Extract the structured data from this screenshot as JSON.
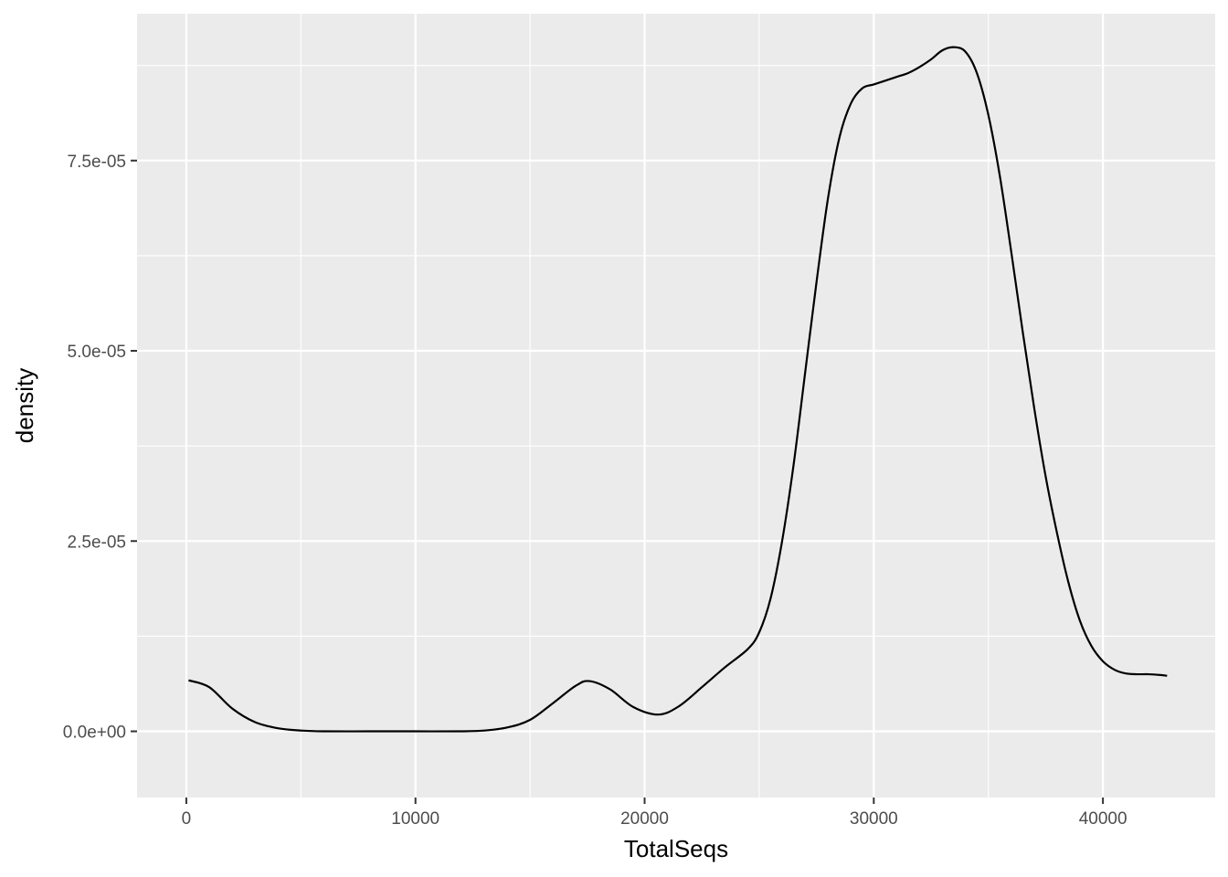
{
  "chart_data": {
    "type": "line",
    "title": "",
    "xlabel": "TotalSeqs",
    "ylabel": "density",
    "xlim": [
      -2150,
      44900
    ],
    "ylim": [
      -8.7e-06,
      9.43e-05
    ],
    "x_ticks": [
      {
        "value": 0,
        "label": "0"
      },
      {
        "value": 10000,
        "label": "10000"
      },
      {
        "value": 20000,
        "label": "20000"
      },
      {
        "value": 30000,
        "label": "30000"
      },
      {
        "value": 40000,
        "label": "40000"
      }
    ],
    "y_ticks": [
      {
        "value": 0,
        "label": "0.0e+00"
      },
      {
        "value": 2.5e-05,
        "label": "2.5e-05"
      },
      {
        "value": 5e-05,
        "label": "5.0e-05"
      },
      {
        "value": 7.5e-05,
        "label": "7.5e-05"
      }
    ],
    "x_minor": [
      5000,
      15000,
      25000,
      35000
    ],
    "y_minor": [
      1.25e-05,
      3.75e-05,
      6.25e-05,
      8.75e-05
    ],
    "grid": true,
    "colors": {
      "panel": "#ebebeb",
      "grid": "#ffffff",
      "line": "#000000",
      "tick": "#333333"
    },
    "series": [
      {
        "x": [
          100,
          1000,
          2000,
          3000,
          4000,
          5000,
          6000,
          8000,
          10000,
          12000,
          13000,
          14000,
          15000,
          16000,
          17000,
          17600,
          18500,
          19500,
          20600,
          21500,
          22500,
          23500,
          24500,
          25000,
          25500,
          26000,
          26500,
          27000,
          27500,
          28000,
          28500,
          29000,
          29500,
          30000,
          30500,
          31000,
          31500,
          32000,
          32500,
          33000,
          33500,
          34000,
          34500,
          35000,
          35500,
          36000,
          36500,
          37000,
          37500,
          38000,
          38500,
          39000,
          39500,
          40000,
          40500,
          41000,
          41500,
          42000,
          42500,
          42800
        ],
        "y": [
          6.7e-06,
          5.8e-06,
          3e-06,
          1.2e-06,
          4e-07,
          1e-07,
          0.0,
          0.0,
          0.0,
          0.0,
          1e-07,
          5e-07,
          1.5e-06,
          3.7e-06,
          6e-06,
          6.6e-06,
          5.5e-06,
          3.2e-06,
          2.2e-06,
          3.3e-06,
          5.8e-06,
          8.4e-06,
          1.08e-05,
          1.3e-05,
          1.75e-05,
          2.5e-05,
          3.5e-05,
          4.7e-05,
          5.9e-05,
          7e-05,
          7.8e-05,
          8.25e-05,
          8.45e-05,
          8.5e-05,
          8.55e-05,
          8.6e-05,
          8.65e-05,
          8.73e-05,
          8.83e-05,
          8.95e-05,
          8.99e-05,
          8.93e-05,
          8.65e-05,
          8.1e-05,
          7.3e-05,
          6.3e-05,
          5.25e-05,
          4.25e-05,
          3.35e-05,
          2.6e-05,
          1.95e-05,
          1.45e-05,
          1.12e-05,
          9.2e-06,
          8.1e-06,
          7.6e-06,
          7.5e-06,
          7.5e-06,
          7.4e-06,
          7.3e-06
        ]
      }
    ]
  }
}
